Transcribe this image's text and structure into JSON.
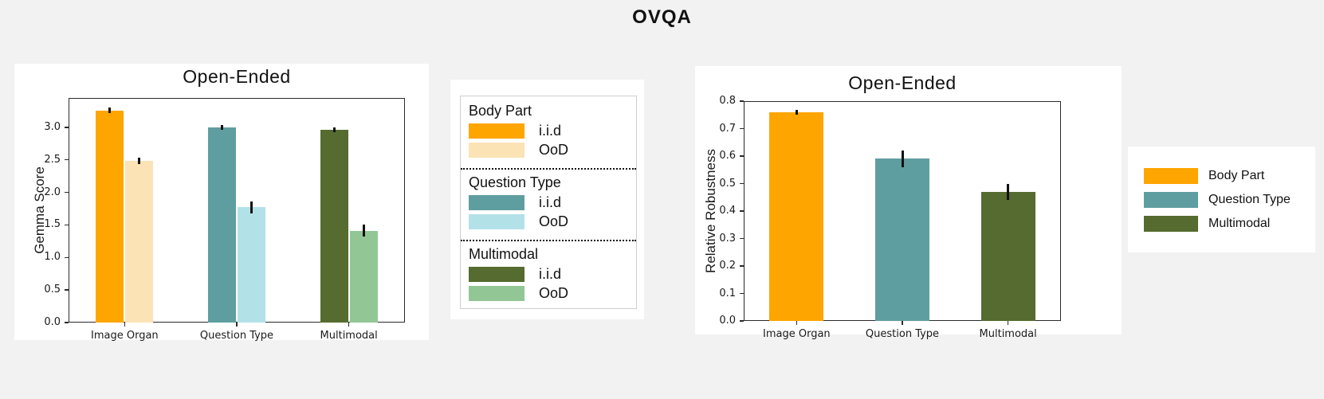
{
  "page_title": "OVQA",
  "colors": {
    "background": "#f2f2f2",
    "panel": "#ffffff",
    "axis": "#2b2b2b",
    "text": "#111111",
    "body_part_iid": "#FFA500",
    "body_part_ood": "#FBE3B5",
    "question_type_iid": "#5F9EA0",
    "question_type_ood": "#B3E1E8",
    "multimodal_iid": "#556B2F",
    "multimodal_ood": "#92C795"
  },
  "chart_data": [
    {
      "type": "bar",
      "variant": "grouped",
      "title": "Open-Ended",
      "xlabel": "",
      "ylabel": "Gemma Score",
      "categories": [
        "Image Organ",
        "Question Type",
        "Multimodal"
      ],
      "series": [
        {
          "name": "i.i.d",
          "values": [
            3.26,
            3.0,
            2.96
          ],
          "errors": [
            0.04,
            0.04,
            0.04
          ],
          "colors": [
            "#FFA500",
            "#5F9EA0",
            "#556B2F"
          ]
        },
        {
          "name": "OoD",
          "values": [
            2.48,
            1.77,
            1.41
          ],
          "errors": [
            0.05,
            0.09,
            0.09
          ],
          "colors": [
            "#FBE3B5",
            "#B3E1E8",
            "#92C795"
          ]
        }
      ],
      "ylim": [
        0,
        3.45
      ],
      "yticks": [
        "0.0",
        "0.5",
        "1.0",
        "1.5",
        "2.0",
        "2.5",
        "3.0"
      ],
      "grid": false,
      "error_bars": true,
      "legend_position": "outside-right"
    },
    {
      "type": "bar",
      "variant": "single",
      "title": "Open-Ended",
      "xlabel": "",
      "ylabel": "Relative Robustness",
      "categories": [
        "Image Organ",
        "Question Type",
        "Multimodal"
      ],
      "values": [
        0.76,
        0.59,
        0.47
      ],
      "errors": [
        0.008,
        0.03,
        0.03
      ],
      "bar_colors": [
        "#FFA500",
        "#5F9EA0",
        "#556B2F"
      ],
      "ylim": [
        0,
        0.8
      ],
      "yticks": [
        "0.0",
        "0.1",
        "0.2",
        "0.3",
        "0.4",
        "0.5",
        "0.6",
        "0.7",
        "0.8"
      ],
      "grid": false,
      "error_bars": true,
      "legend_position": "outside-right"
    }
  ],
  "legend_detailed": {
    "groups": [
      {
        "title": "Body Part",
        "entries": [
          {
            "label": "i.i.d",
            "color": "#FFA500"
          },
          {
            "label": "OoD",
            "color": "#FBE3B5"
          }
        ]
      },
      {
        "title": "Question Type",
        "entries": [
          {
            "label": "i.i.d",
            "color": "#5F9EA0"
          },
          {
            "label": "OoD",
            "color": "#B3E1E8"
          }
        ]
      },
      {
        "title": "Multimodal",
        "entries": [
          {
            "label": "i.i.d",
            "color": "#556B2F"
          },
          {
            "label": "OoD",
            "color": "#92C795"
          }
        ]
      }
    ]
  },
  "legend_simple": {
    "entries": [
      {
        "label": "Body Part",
        "color": "#FFA500"
      },
      {
        "label": "Question Type",
        "color": "#5F9EA0"
      },
      {
        "label": "Multimodal",
        "color": "#556B2F"
      }
    ]
  }
}
